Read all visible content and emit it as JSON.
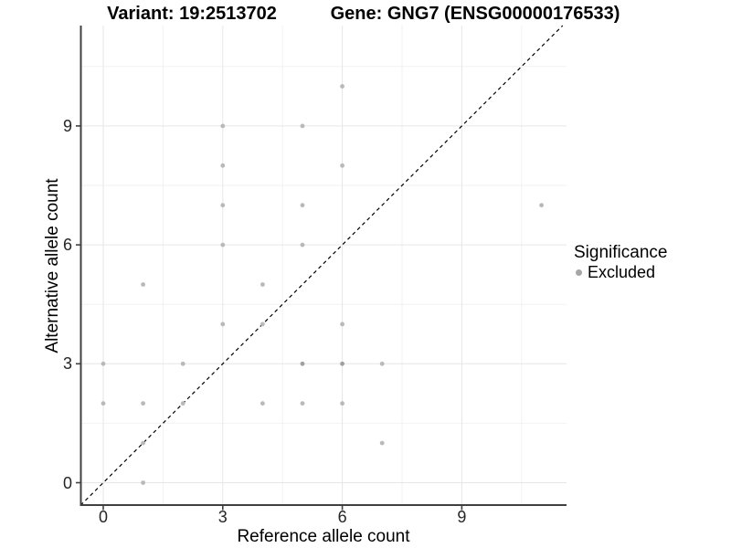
{
  "titles": {
    "variant": "Variant: 19:2513702",
    "gene": "Gene: GNG7 (ENSG00000176533)"
  },
  "legend": {
    "title": "Significance",
    "items": [
      {
        "label": "Excluded",
        "color": "#a6a6a6"
      }
    ]
  },
  "colors": {
    "point": "#b9b9b9",
    "point_overlap": "#a0a0a0",
    "grid_major": "#e6e6e6",
    "grid_minor": "#f2f2f2",
    "axis_line": "#404040",
    "identity_line": "#000000"
  },
  "chart_data": {
    "type": "scatter",
    "title": "Variant: 19:2513702    Gene: GNG7 (ENSG00000176533)",
    "xlabel": "Reference allele count",
    "ylabel": "Alternative allele count",
    "xlim": [
      -0.57,
      11.66
    ],
    "ylim": [
      -0.57,
      11.53
    ],
    "x_ticks": [
      0,
      3,
      6,
      9
    ],
    "y_ticks": [
      0,
      3,
      6,
      9
    ],
    "x_minor": [
      1.5,
      4.5,
      7.5,
      10.5
    ],
    "y_minor": [
      1.5,
      4.5,
      7.5,
      10.5
    ],
    "grid": true,
    "identity_line_dashed": true,
    "legend_position": "right",
    "series": [
      {
        "name": "Excluded",
        "color": "#b9b9b9",
        "points": [
          [
            0,
            3,
            1
          ],
          [
            0,
            2,
            1
          ],
          [
            1,
            5,
            1
          ],
          [
            1,
            2,
            1
          ],
          [
            1,
            1,
            1
          ],
          [
            1,
            0,
            1
          ],
          [
            2,
            3,
            1
          ],
          [
            2,
            2,
            1
          ],
          [
            3,
            9,
            1
          ],
          [
            3,
            8,
            1
          ],
          [
            3,
            7,
            1
          ],
          [
            3,
            6,
            1
          ],
          [
            3,
            4,
            1
          ],
          [
            4,
            5,
            1
          ],
          [
            4,
            4,
            1
          ],
          [
            4,
            2,
            1
          ],
          [
            5,
            9,
            1
          ],
          [
            5,
            7,
            1
          ],
          [
            5,
            6,
            1
          ],
          [
            5,
            3,
            2
          ],
          [
            5,
            2,
            1
          ],
          [
            6,
            10,
            1
          ],
          [
            6,
            8,
            1
          ],
          [
            6,
            4,
            1
          ],
          [
            6,
            3,
            2
          ],
          [
            6,
            2,
            1
          ],
          [
            7,
            3,
            1
          ],
          [
            7,
            1,
            1
          ],
          [
            11,
            7,
            1
          ]
        ]
      }
    ]
  }
}
